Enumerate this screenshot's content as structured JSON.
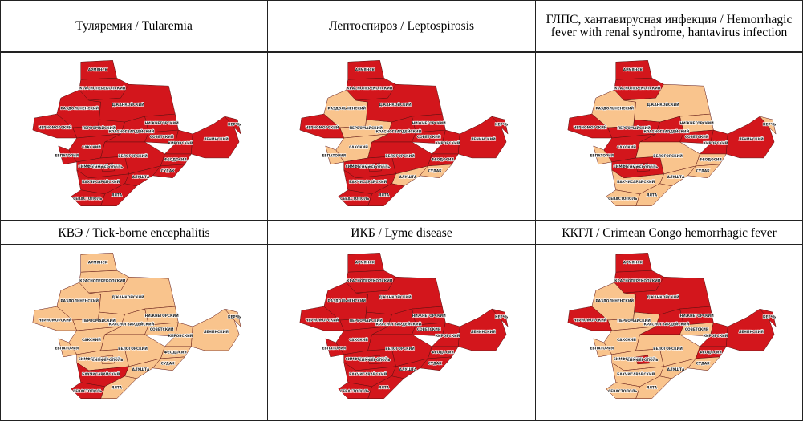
{
  "regions": [
    "АРМЯНСК",
    "КРАСНОПЕРЕКОПСКИЙ",
    "РАЗДОЛЬНЕНСКИЙ",
    "ЧЕРНОМОРСКИЙ",
    "ДЖАНКОЙСКИЙ",
    "ПЕРВОМАЙСКИЙ",
    "НИЖНЕГОРСКИЙ",
    "КРАСНОГВАРДЕЙСКИЙ",
    "СОВЕТСКИЙ",
    "КИРОВСКИЙ",
    "ЛЕНИНСКИЙ",
    "КЕРЧЬ",
    "САКСКИЙ",
    "ЕВПАТОРИЯ",
    "СИМФЕРОПОЛЬСКИЙ",
    "СИМФЕРОПОЛЬ",
    "БЕЛОГОРСКИЙ",
    "ФЕОДОСИЯ",
    "СУДАК",
    "АЛУШТА",
    "БАХЧИСАРАЙСКИЙ",
    "ЯЛТА",
    "СЕВАСТОПОЛЬ"
  ],
  "colors": {
    "present": "#d3161c",
    "absent": "#f9c48d",
    "border": "#5a1010"
  },
  "table": {
    "cells": [
      {
        "title": "Туляремия / Tularemia",
        "present": [
          1,
          1,
          1,
          1,
          1,
          1,
          1,
          1,
          1,
          1,
          1,
          1,
          1,
          1,
          1,
          1,
          1,
          1,
          1,
          1,
          1,
          1,
          1
        ]
      },
      {
        "title": "Лептоспироз / Leptospirosis",
        "present": [
          1,
          1,
          0,
          1,
          1,
          0,
          1,
          1,
          1,
          1,
          1,
          1,
          0,
          0,
          1,
          1,
          1,
          1,
          0,
          0,
          1,
          1,
          1
        ]
      },
      {
        "title": "ГЛПС, хантавирусная инфекция / Hemorrhagic fever with renal syndrome, hantavirus infection",
        "present": [
          1,
          1,
          0,
          1,
          0,
          1,
          0,
          1,
          1,
          1,
          1,
          0,
          1,
          0,
          1,
          1,
          0,
          0,
          0,
          0,
          0,
          0,
          0
        ]
      },
      {
        "title": "КВЭ / Tick-borne encephalitis",
        "present": [
          0,
          0,
          0,
          0,
          0,
          0,
          0,
          0,
          0,
          0,
          0,
          0,
          0,
          0,
          0,
          0,
          0,
          0,
          0,
          0,
          1,
          0,
          1
        ]
      },
      {
        "title": "ИКБ / Lyme disease",
        "present": [
          1,
          1,
          1,
          1,
          1,
          1,
          1,
          1,
          1,
          1,
          1,
          1,
          1,
          1,
          1,
          1,
          1,
          1,
          1,
          1,
          1,
          1,
          1
        ]
      },
      {
        "title": "ККГЛ / Crimean Congo hemorrhagic fever",
        "present": [
          1,
          1,
          0,
          1,
          1,
          0,
          1,
          1,
          0,
          1,
          1,
          1,
          0,
          0,
          0,
          1,
          0,
          1,
          0,
          0,
          0,
          0,
          0
        ]
      }
    ]
  }
}
